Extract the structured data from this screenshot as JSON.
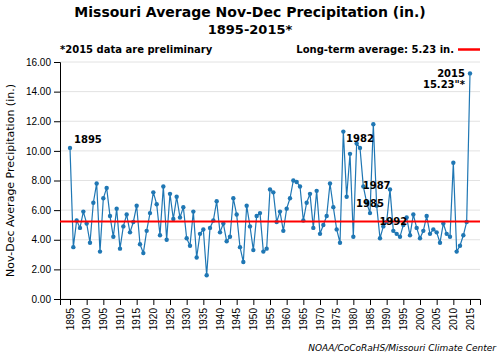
{
  "chart_data": {
    "type": "line",
    "title": "Missouri Average Nov-Dec Precipitation (in.)",
    "subtitle": "1895-2015*",
    "y_label": "Nov-Dec Average Precipitation (in.)",
    "note": "*2015 data are preliminary",
    "source": "NOAA/CoCoRaHS/Missouri Climate Center",
    "x": [
      1895,
      1896,
      1897,
      1898,
      1899,
      1900,
      1901,
      1902,
      1903,
      1904,
      1905,
      1906,
      1907,
      1908,
      1909,
      1910,
      1911,
      1912,
      1913,
      1914,
      1915,
      1916,
      1917,
      1918,
      1919,
      1920,
      1921,
      1922,
      1923,
      1924,
      1925,
      1926,
      1927,
      1928,
      1929,
      1930,
      1931,
      1932,
      1933,
      1934,
      1935,
      1936,
      1937,
      1938,
      1939,
      1940,
      1941,
      1942,
      1943,
      1944,
      1945,
      1946,
      1947,
      1948,
      1949,
      1950,
      1951,
      1952,
      1953,
      1954,
      1955,
      1956,
      1957,
      1958,
      1959,
      1960,
      1961,
      1962,
      1963,
      1964,
      1965,
      1966,
      1967,
      1968,
      1969,
      1970,
      1971,
      1972,
      1973,
      1974,
      1975,
      1976,
      1977,
      1978,
      1979,
      1980,
      1981,
      1982,
      1983,
      1984,
      1985,
      1986,
      1987,
      1988,
      1989,
      1990,
      1991,
      1992,
      1993,
      1994,
      1995,
      1996,
      1997,
      1998,
      1999,
      2000,
      2001,
      2002,
      2003,
      2004,
      2005,
      2006,
      2007,
      2008,
      2009,
      2010,
      2011,
      2012,
      2013,
      2014,
      2015
    ],
    "values": [
      10.2,
      3.5,
      5.3,
      4.8,
      5.9,
      5.1,
      3.8,
      6.5,
      7.8,
      3.2,
      6.8,
      7.5,
      5.6,
      4.2,
      6.1,
      3.4,
      4.9,
      5.7,
      4.5,
      5.2,
      6.3,
      3.7,
      3.1,
      4.6,
      5.8,
      7.2,
      6.4,
      4.3,
      7.6,
      4.0,
      7.1,
      5.4,
      6.9,
      5.5,
      6.2,
      4.1,
      3.6,
      5.9,
      2.8,
      4.4,
      4.7,
      1.6,
      4.8,
      5.3,
      6.6,
      4.5,
      5.1,
      3.9,
      4.2,
      6.8,
      5.7,
      3.5,
      2.5,
      6.3,
      4.9,
      3.3,
      5.6,
      5.8,
      3.2,
      3.4,
      7.4,
      7.2,
      5.2,
      5.9,
      4.6,
      6.1,
      6.8,
      8.0,
      7.9,
      7.6,
      5.3,
      6.5,
      7.1,
      4.8,
      7.3,
      4.4,
      5.0,
      5.6,
      7.8,
      6.2,
      4.7,
      3.8,
      11.3,
      6.9,
      9.8,
      4.2,
      10.5,
      10.2,
      7.6,
      6.5,
      5.8,
      11.8,
      6.3,
      4.1,
      4.9,
      5.2,
      7.4,
      4.6,
      4.4,
      4.2,
      5.0,
      5.5,
      4.3,
      5.7,
      4.8,
      4.1,
      4.6,
      5.6,
      4.4,
      4.7,
      4.5,
      3.8,
      5.1,
      4.4,
      4.2,
      9.2,
      3.2,
      3.6,
      4.3,
      5.2,
      15.23
    ],
    "marker": "circle",
    "long_term_average": {
      "value": 5.23,
      "label": "Long-term average: 5.23 in.",
      "color": "#FF0000"
    },
    "xlim": [
      1892,
      2018
    ],
    "xticks": [
      1895,
      1900,
      1905,
      1910,
      1915,
      1920,
      1925,
      1930,
      1935,
      1940,
      1945,
      1950,
      1955,
      1960,
      1965,
      1970,
      1975,
      1980,
      1985,
      1990,
      1995,
      2000,
      2005,
      2010,
      2015
    ],
    "ylim": [
      0.0,
      16.0
    ],
    "yticks": [
      {
        "value": 0.0,
        "label": "0.00"
      },
      {
        "value": 2.0,
        "label": "2.00"
      },
      {
        "value": 4.0,
        "label": "4.00"
      },
      {
        "value": 6.0,
        "label": "6.00"
      },
      {
        "value": 8.0,
        "label": "8.00"
      },
      {
        "value": 10.0,
        "label": "10.00"
      },
      {
        "value": 12.0,
        "label": "12.00"
      },
      {
        "value": 14.0,
        "label": "14.00"
      },
      {
        "value": 16.0,
        "label": "16.00"
      }
    ],
    "grid": true,
    "annotations": [
      {
        "text": "1895",
        "x": 1895
      },
      {
        "text": "1982",
        "x": 1982
      },
      {
        "text": "1985",
        "x": 1985
      },
      {
        "text": "1987",
        "x": 1987
      },
      {
        "text": "1992",
        "x": 1992
      },
      {
        "text": "2015",
        "x": 2015
      },
      {
        "text": "15.23\"*",
        "x": 2015
      }
    ]
  }
}
